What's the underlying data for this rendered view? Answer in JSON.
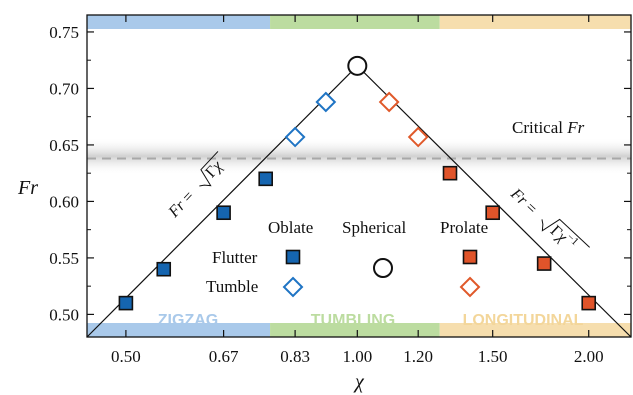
{
  "chart_data": {
    "type": "scatter",
    "x_ticks": [
      "0.50",
      "0.67",
      "0.83",
      "1.00",
      "1.20",
      "1.50",
      "2.00"
    ],
    "y_ticks": [
      "0.50",
      "0.55",
      "0.60",
      "0.65",
      "0.70",
      "0.75"
    ],
    "ylabel": "Fr",
    "xlabel": "χ",
    "xscale": "log",
    "xlim": [
      0.445,
      2.27
    ],
    "ylim": [
      0.48,
      0.765
    ],
    "grid": false,
    "critical_fr": {
      "label_prefix": "Critical ",
      "label_var": "Fr",
      "value": 0.638,
      "band": [
        0.627,
        0.653
      ]
    },
    "regimes": [
      {
        "label": "ZIGZAG",
        "x_range": [
          0.445,
          0.77
        ],
        "color": "#a9c9ea"
      },
      {
        "label": "TUMBLING",
        "x_range": [
          0.77,
          1.28
        ],
        "color": "#bcdca0"
      },
      {
        "label": "LONGITUDINAL",
        "x_range": [
          1.28,
          2.27
        ],
        "color": "#f6deae"
      }
    ],
    "curve_left": {
      "label": "Fr = √Γχ",
      "x": [
        0.445,
        1.0
      ],
      "y": [
        0.48,
        0.72
      ]
    },
    "curve_right": {
      "label": "Fr = √Γχ⁻¹",
      "x": [
        1.0,
        2.27
      ],
      "y": [
        0.72,
        0.48
      ]
    },
    "series": [
      {
        "name": "Oblate Flutter",
        "marker": "square-filled",
        "color": "#1565b0",
        "points": [
          [
            0.5,
            0.51
          ],
          [
            0.56,
            0.54
          ],
          [
            0.67,
            0.59
          ],
          [
            0.76,
            0.62
          ]
        ]
      },
      {
        "name": "Oblate Tumble",
        "marker": "diamond-open",
        "color": "#1f74c4",
        "points": [
          [
            0.83,
            0.657
          ],
          [
            0.91,
            0.688
          ]
        ]
      },
      {
        "name": "Spherical",
        "marker": "circle-open",
        "color": "#111111",
        "points": [
          [
            1.0,
            0.72
          ]
        ]
      },
      {
        "name": "Prolate Tumble",
        "marker": "diamond-open",
        "color": "#e0592a",
        "points": [
          [
            1.1,
            0.688
          ],
          [
            1.2,
            0.657
          ]
        ]
      },
      {
        "name": "Prolate Flutter",
        "marker": "square-filled",
        "color": "#e0542a",
        "points": [
          [
            1.32,
            0.625
          ],
          [
            1.5,
            0.59
          ],
          [
            1.75,
            0.545
          ],
          [
            2.0,
            0.51
          ]
        ]
      }
    ],
    "legend": {
      "columns": [
        "Oblate",
        "Spherical",
        "Prolate"
      ],
      "rows": [
        "Flutter",
        "Tumble"
      ]
    }
  }
}
